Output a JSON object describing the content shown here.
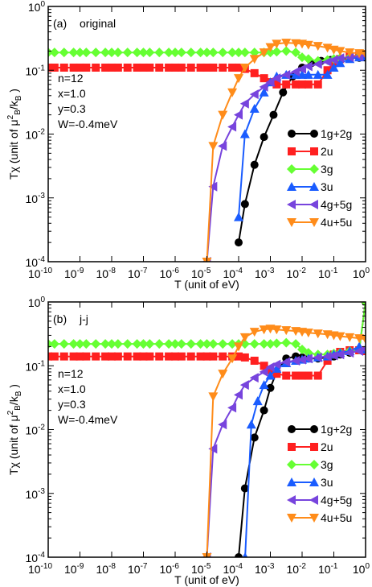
{
  "chart_data": [
    {
      "type": "line",
      "panel_label": "(a)",
      "title": "original",
      "xlabel": "T (unit of eV)",
      "ylabel_prefix": "Tχ  (unit of μ",
      "ylabel_sup": "2",
      "ylabel_mid": "B",
      "ylabel_tail": "/k",
      "ylabel_sub2": "B",
      "ylabel_close": " )",
      "xscale": "log",
      "yscale": "log",
      "xlim": [
        1e-10,
        1
      ],
      "ylim": [
        0.0001,
        1
      ],
      "x_ticks": [
        {
          "base": "10",
          "exp": "-10"
        },
        {
          "base": "10",
          "exp": "-9"
        },
        {
          "base": "10",
          "exp": "-8"
        },
        {
          "base": "10",
          "exp": "-7"
        },
        {
          "base": "10",
          "exp": "-6"
        },
        {
          "base": "10",
          "exp": "-5"
        },
        {
          "base": "10",
          "exp": "-4"
        },
        {
          "base": "10",
          "exp": "-3"
        },
        {
          "base": "10",
          "exp": "-2"
        },
        {
          "base": "10",
          "exp": "-1"
        },
        {
          "base": "10",
          "exp": "0"
        }
      ],
      "y_ticks": [
        {
          "base": "10",
          "exp": "-4"
        },
        {
          "base": "10",
          "exp": "-3"
        },
        {
          "base": "10",
          "exp": "-2"
        },
        {
          "base": "10",
          "exp": "-1"
        },
        {
          "base": "10",
          "exp": "0"
        }
      ],
      "params": [
        "n=12",
        "x=1.0",
        "y=0.3",
        "W=-0.4meV"
      ],
      "legend_position": "lower-right",
      "grid": false,
      "series": [
        {
          "name": "1g+2g",
          "color": "#000000",
          "marker": "circle",
          "x": [
            0.0001,
            0.000158,
            0.000316,
            0.000631,
            0.00126,
            0.00251,
            0.00501,
            0.01,
            0.02,
            0.0398,
            0.0794,
            0.158,
            0.316,
            0.631,
            1
          ],
          "y": [
            0.0002,
            0.0008,
            0.0033,
            0.009,
            0.02,
            0.045,
            0.08,
            0.11,
            0.13,
            0.14,
            0.145,
            0.15,
            0.155,
            0.157,
            0.158
          ]
        },
        {
          "name": "2u",
          "color": "#ff2020",
          "marker": "square",
          "x": [
            1e-10,
            1.58e-10,
            3.16e-10,
            6.31e-10,
            1e-09,
            1.58e-09,
            3.16e-09,
            6.31e-09,
            1e-08,
            1.58e-08,
            3.16e-08,
            6.31e-08,
            1e-07,
            1.58e-07,
            3.16e-07,
            6.31e-07,
            1e-06,
            1.58e-06,
            3.16e-06,
            6.31e-06,
            1e-05,
            1.58e-05,
            3.16e-05,
            6.31e-05,
            0.0001,
            0.000158,
            0.000316,
            0.000631,
            0.001,
            0.00158,
            0.00316,
            0.00631,
            0.01,
            0.0158,
            0.0316,
            0.0631,
            0.1,
            0.158,
            0.316,
            0.631,
            1
          ],
          "y": [
            0.11,
            0.11,
            0.11,
            0.11,
            0.11,
            0.11,
            0.11,
            0.11,
            0.11,
            0.11,
            0.11,
            0.11,
            0.11,
            0.11,
            0.11,
            0.11,
            0.11,
            0.11,
            0.11,
            0.11,
            0.11,
            0.11,
            0.11,
            0.11,
            0.11,
            0.105,
            0.09,
            0.075,
            0.065,
            0.06,
            0.06,
            0.06,
            0.06,
            0.06,
            0.06,
            0.1,
            0.13,
            0.15,
            0.165,
            0.17,
            0.17
          ]
        },
        {
          "name": "3g",
          "color": "#66ff33",
          "marker": "diamond",
          "x": [
            1e-10,
            1.58e-10,
            3.16e-10,
            6.31e-10,
            1e-09,
            1.58e-09,
            3.16e-09,
            6.31e-09,
            1e-08,
            1.58e-08,
            3.16e-08,
            6.31e-08,
            1e-07,
            1.58e-07,
            3.16e-07,
            6.31e-07,
            1e-06,
            1.58e-06,
            3.16e-06,
            6.31e-06,
            1e-05,
            1.58e-05,
            3.16e-05,
            6.31e-05,
            0.0001,
            0.000158,
            0.000316,
            0.000631,
            0.001,
            0.00158,
            0.00316,
            0.00631,
            0.01,
            0.0158,
            0.0316,
            0.0631,
            0.1,
            0.158,
            0.316,
            0.631,
            1
          ],
          "y": [
            0.19,
            0.19,
            0.19,
            0.19,
            0.19,
            0.19,
            0.19,
            0.19,
            0.19,
            0.19,
            0.19,
            0.19,
            0.19,
            0.19,
            0.19,
            0.19,
            0.19,
            0.19,
            0.19,
            0.19,
            0.19,
            0.19,
            0.19,
            0.19,
            0.19,
            0.19,
            0.19,
            0.19,
            0.19,
            0.195,
            0.2,
            0.19,
            0.16,
            0.15,
            0.14,
            0.145,
            0.15,
            0.155,
            0.16,
            0.165,
            0.17
          ]
        },
        {
          "name": "3u",
          "color": "#1a5cff",
          "marker": "triangle-up",
          "x": [
            0.0001,
            0.000158,
            0.000316,
            0.000631,
            0.001,
            0.00158,
            0.00316,
            0.00631,
            0.01,
            0.0158,
            0.0316,
            0.0631,
            0.1,
            0.158,
            0.316,
            0.631,
            1
          ],
          "y": [
            0.0005,
            0.01,
            0.025,
            0.045,
            0.065,
            0.08,
            0.085,
            0.085,
            0.085,
            0.085,
            0.085,
            0.085,
            0.11,
            0.13,
            0.15,
            0.16,
            0.165
          ]
        },
        {
          "name": "4g+5g",
          "color": "#7744dd",
          "marker": "triangle-left",
          "x": [
            1e-05,
            1.58e-05,
            3.16e-05,
            6.31e-05,
            0.0001,
            0.000158,
            0.000316,
            0.000631,
            0.001,
            0.00158,
            0.00316,
            0.00631,
            0.01,
            0.0158,
            0.0316,
            0.0631,
            0.1,
            0.158,
            0.316,
            0.631,
            1
          ],
          "y": [
            0.0001,
            0.0015,
            0.0065,
            0.013,
            0.02,
            0.03,
            0.042,
            0.055,
            0.065,
            0.075,
            0.085,
            0.095,
            0.105,
            0.115,
            0.125,
            0.135,
            0.145,
            0.155,
            0.16,
            0.165,
            0.17
          ]
        },
        {
          "name": "4u+5u",
          "color": "#ff8c1a",
          "marker": "triangle-down",
          "x": [
            1e-05,
            1.58e-05,
            3.16e-05,
            6.31e-05,
            0.0001,
            0.000158,
            0.000316,
            0.000631,
            0.001,
            0.00158,
            0.00316,
            0.00631,
            0.01,
            0.0158,
            0.0316,
            0.0631,
            0.1,
            0.158,
            0.316,
            0.631,
            1
          ],
          "y": [
            0.0001,
            0.0065,
            0.02,
            0.045,
            0.075,
            0.11,
            0.15,
            0.19,
            0.23,
            0.26,
            0.27,
            0.265,
            0.26,
            0.25,
            0.24,
            0.225,
            0.21,
            0.2,
            0.19,
            0.185,
            0.18
          ]
        }
      ]
    },
    {
      "type": "line",
      "panel_label": "(b)",
      "title": "j-j",
      "xlabel": "T (unit of eV)",
      "ylabel_prefix": "Tχ  (unit of μ",
      "ylabel_sup": "2",
      "ylabel_mid": "B",
      "ylabel_tail": "/k",
      "ylabel_sub2": "B",
      "ylabel_close": " )",
      "xscale": "log",
      "yscale": "log",
      "xlim": [
        1e-10,
        1
      ],
      "ylim": [
        0.0001,
        1
      ],
      "x_ticks": [
        {
          "base": "10",
          "exp": "-10"
        },
        {
          "base": "10",
          "exp": "-9"
        },
        {
          "base": "10",
          "exp": "-8"
        },
        {
          "base": "10",
          "exp": "-7"
        },
        {
          "base": "10",
          "exp": "-6"
        },
        {
          "base": "10",
          "exp": "-5"
        },
        {
          "base": "10",
          "exp": "-4"
        },
        {
          "base": "10",
          "exp": "-3"
        },
        {
          "base": "10",
          "exp": "-2"
        },
        {
          "base": "10",
          "exp": "-1"
        },
        {
          "base": "10",
          "exp": "0"
        }
      ],
      "y_ticks": [
        {
          "base": "10",
          "exp": "-4"
        },
        {
          "base": "10",
          "exp": "-3"
        },
        {
          "base": "10",
          "exp": "-2"
        },
        {
          "base": "10",
          "exp": "-1"
        },
        {
          "base": "10",
          "exp": "0"
        }
      ],
      "params": [
        "n=12",
        "x=1.0",
        "y=0.3",
        "W=-0.4meV"
      ],
      "legend_position": "lower-right",
      "grid": false,
      "series": [
        {
          "name": "1g+2g",
          "color": "#000000",
          "marker": "circle",
          "x": [
            0.0001,
            0.000158,
            0.000316,
            0.000631,
            0.001,
            0.00158,
            0.00316,
            0.00631,
            0.01,
            0.0158,
            0.0316,
            0.0631,
            0.1,
            0.158,
            0.316,
            0.631,
            1
          ],
          "y": [
            0.0001,
            0.0012,
            0.0075,
            0.02,
            0.045,
            0.08,
            0.13,
            0.14,
            0.135,
            0.13,
            0.13,
            0.135,
            0.14,
            0.15,
            0.16,
            0.18,
            1.0
          ]
        },
        {
          "name": "2u",
          "color": "#ff2020",
          "marker": "square",
          "x": [
            1e-10,
            1.58e-10,
            3.16e-10,
            6.31e-10,
            1e-09,
            1.58e-09,
            3.16e-09,
            6.31e-09,
            1e-08,
            1.58e-08,
            3.16e-08,
            6.31e-08,
            1e-07,
            1.58e-07,
            3.16e-07,
            6.31e-07,
            1e-06,
            1.58e-06,
            3.16e-06,
            6.31e-06,
            1e-05,
            1.58e-05,
            3.16e-05,
            6.31e-05,
            0.0001,
            0.000158,
            0.000316,
            0.000631,
            0.001,
            0.00158,
            0.00316,
            0.00631,
            0.01,
            0.0158,
            0.0316,
            0.0631,
            0.1,
            0.158,
            0.316,
            0.631,
            1
          ],
          "y": [
            0.14,
            0.14,
            0.14,
            0.14,
            0.14,
            0.14,
            0.14,
            0.14,
            0.14,
            0.14,
            0.14,
            0.14,
            0.14,
            0.14,
            0.14,
            0.14,
            0.14,
            0.14,
            0.14,
            0.14,
            0.14,
            0.14,
            0.14,
            0.14,
            0.14,
            0.135,
            0.12,
            0.1,
            0.085,
            0.075,
            0.07,
            0.07,
            0.07,
            0.07,
            0.07,
            0.12,
            0.15,
            0.165,
            0.175,
            0.175,
            0.17
          ]
        },
        {
          "name": "3g",
          "color": "#66ff33",
          "marker": "diamond",
          "x": [
            1e-10,
            1.58e-10,
            3.16e-10,
            6.31e-10,
            1e-09,
            1.58e-09,
            3.16e-09,
            6.31e-09,
            1e-08,
            1.58e-08,
            3.16e-08,
            6.31e-08,
            1e-07,
            1.58e-07,
            3.16e-07,
            6.31e-07,
            1e-06,
            1.58e-06,
            3.16e-06,
            6.31e-06,
            1e-05,
            1.58e-05,
            3.16e-05,
            6.31e-05,
            0.0001,
            0.000158,
            0.000316,
            0.000631,
            0.001,
            0.00158,
            0.00316,
            0.00631,
            0.01,
            0.0158,
            0.0316,
            0.0631,
            0.1,
            0.158,
            0.316,
            0.631,
            1
          ],
          "y": [
            0.22,
            0.22,
            0.22,
            0.22,
            0.22,
            0.22,
            0.22,
            0.22,
            0.22,
            0.22,
            0.22,
            0.22,
            0.22,
            0.22,
            0.22,
            0.22,
            0.22,
            0.22,
            0.22,
            0.22,
            0.22,
            0.22,
            0.22,
            0.22,
            0.22,
            0.22,
            0.22,
            0.22,
            0.22,
            0.225,
            0.23,
            0.22,
            0.18,
            0.16,
            0.15,
            0.15,
            0.155,
            0.16,
            0.17,
            0.18,
            1.0
          ]
        },
        {
          "name": "3u",
          "color": "#1a5cff",
          "marker": "triangle-up",
          "x": [
            0.00016,
            0.000251,
            0.000398,
            0.000631,
            0.001,
            0.00158,
            0.00316,
            0.00631,
            0.01,
            0.0158,
            0.0316,
            0.0631,
            0.1,
            0.158,
            0.316,
            0.631,
            1
          ],
          "y": [
            0.0001,
            0.012,
            0.028,
            0.05,
            0.07,
            0.09,
            0.11,
            0.12,
            0.125,
            0.13,
            0.135,
            0.14,
            0.15,
            0.16,
            0.17,
            0.2,
            0.18
          ]
        },
        {
          "name": "4g+5g",
          "color": "#7744dd",
          "marker": "triangle-left",
          "x": [
            1e-05,
            1.58e-05,
            3.16e-05,
            6.31e-05,
            0.0001,
            0.000158,
            0.000316,
            0.000631,
            0.001,
            0.00158,
            0.00316,
            0.00631,
            0.01,
            0.0158,
            0.0316,
            0.0631,
            0.1,
            0.158,
            0.316,
            0.631,
            1
          ],
          "y": [
            0.0001,
            0.005,
            0.012,
            0.022,
            0.035,
            0.05,
            0.065,
            0.08,
            0.095,
            0.105,
            0.115,
            0.12,
            0.125,
            0.13,
            0.135,
            0.14,
            0.145,
            0.15,
            0.16,
            0.17,
            0.18
          ]
        },
        {
          "name": "4u+5u",
          "color": "#ff8c1a",
          "marker": "triangle-down",
          "x": [
            1e-05,
            1.58e-05,
            3.16e-05,
            6.31e-05,
            0.0001,
            0.000158,
            0.000316,
            0.000631,
            0.001,
            0.00158,
            0.00316,
            0.00631,
            0.01,
            0.0158,
            0.0316,
            0.0631,
            0.1,
            0.158,
            0.316,
            0.631,
            1
          ],
          "y": [
            0.0001,
            0.033,
            0.075,
            0.13,
            0.2,
            0.28,
            0.34,
            0.37,
            0.38,
            0.37,
            0.36,
            0.35,
            0.34,
            0.33,
            0.32,
            0.31,
            0.3,
            0.29,
            0.28,
            0.27,
            0.26
          ]
        }
      ]
    }
  ]
}
